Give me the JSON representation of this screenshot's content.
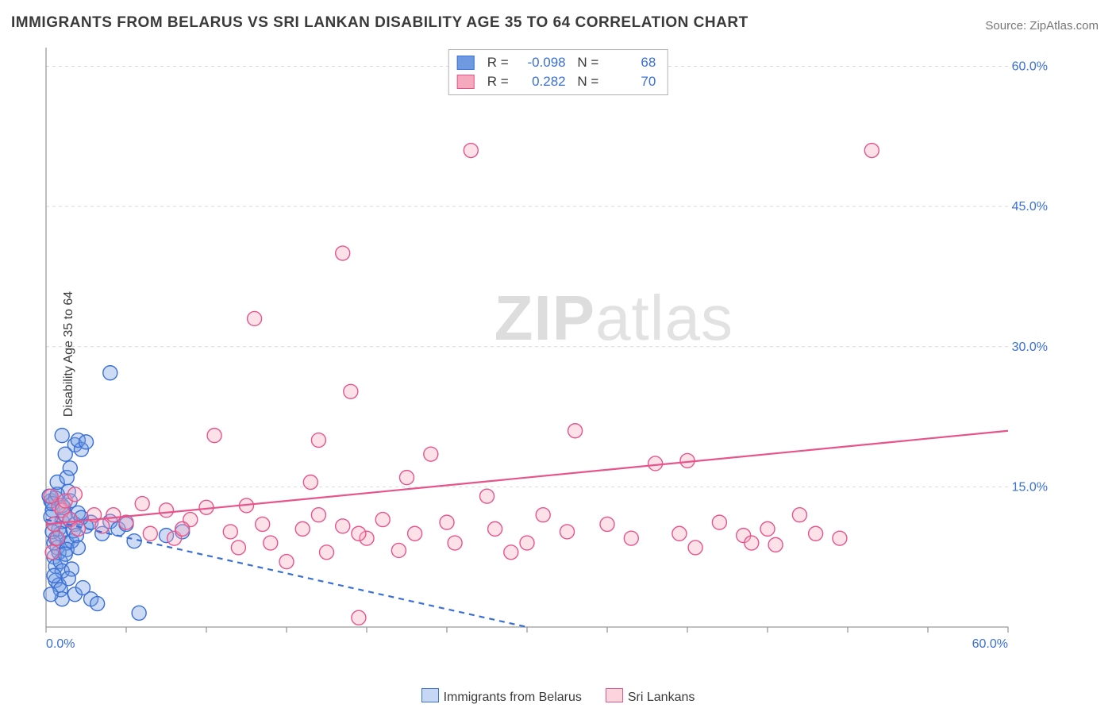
{
  "title": "IMMIGRANTS FROM BELARUS VS SRI LANKAN DISABILITY AGE 35 TO 64 CORRELATION CHART",
  "source_label": "Source: ",
  "source_name": "ZipAtlas.com",
  "ylabel": "Disability Age 35 to 64",
  "watermark_a": "ZIP",
  "watermark_b": "atlas",
  "chart": {
    "type": "scatter-with-regression",
    "xlim": [
      0,
      60
    ],
    "ylim": [
      0,
      62
    ],
    "x_ticks": [
      0,
      5,
      10,
      15,
      20,
      25,
      30,
      35,
      40,
      45,
      50,
      55,
      60
    ],
    "x_tick_labels": {
      "0": "0.0%",
      "60": "60.0%"
    },
    "y_ticks": [
      15,
      30,
      45,
      60
    ],
    "y_tick_labels": {
      "15": "15.0%",
      "30": "30.0%",
      "45": "45.0%",
      "60": "60.0%"
    },
    "grid_color": "#d9d9d9",
    "axis_color": "#9a9a9a",
    "background_color": "#ffffff",
    "marker_radius": 9,
    "marker_fill_opacity": 0.35,
    "marker_stroke_width": 1.4,
    "line_width": 2.2,
    "series": [
      {
        "name": "Immigrants from Belarus",
        "color": "#6f9ae0",
        "stroke": "#3a6fd8",
        "line_color": "#3a6fd8",
        "line_dashed": true,
        "R": "-0.098",
        "N": "68",
        "reg_start": [
          0,
          11.5
        ],
        "reg_end": [
          30,
          0
        ],
        "points": [
          [
            0.3,
            13.5
          ],
          [
            0.5,
            11.0
          ],
          [
            0.6,
            9.5
          ],
          [
            0.4,
            12.5
          ],
          [
            0.8,
            10.5
          ],
          [
            0.2,
            14.0
          ],
          [
            1.0,
            11.3
          ],
          [
            0.7,
            8.5
          ],
          [
            1.2,
            12.0
          ],
          [
            0.9,
            10.0
          ],
          [
            1.5,
            11.5
          ],
          [
            0.6,
            13.8
          ],
          [
            1.3,
            9.0
          ],
          [
            0.4,
            10.2
          ],
          [
            1.8,
            11.0
          ],
          [
            0.5,
            7.5
          ],
          [
            1.0,
            13.0
          ],
          [
            2.5,
            10.8
          ],
          [
            1.6,
            9.2
          ],
          [
            0.3,
            11.8
          ],
          [
            2.0,
            12.2
          ],
          [
            0.8,
            8.0
          ],
          [
            1.4,
            14.5
          ],
          [
            0.6,
            6.5
          ],
          [
            1.1,
            12.8
          ],
          [
            0.9,
            7.0
          ],
          [
            1.7,
            10.3
          ],
          [
            0.5,
            9.0
          ],
          [
            2.2,
            11.7
          ],
          [
            1.3,
            8.3
          ],
          [
            0.4,
            13.2
          ],
          [
            1.9,
            9.8
          ],
          [
            0.7,
            14.2
          ],
          [
            1.0,
            6.0
          ],
          [
            2.8,
            11.2
          ],
          [
            0.6,
            5.0
          ],
          [
            1.5,
            13.5
          ],
          [
            0.8,
            4.5
          ],
          [
            1.2,
            7.8
          ],
          [
            0.5,
            5.5
          ],
          [
            1.6,
            6.2
          ],
          [
            2.0,
            8.5
          ],
          [
            0.9,
            4.0
          ],
          [
            1.4,
            5.2
          ],
          [
            3.5,
            10.0
          ],
          [
            4.0,
            11.3
          ],
          [
            4.5,
            10.5
          ],
          [
            5.5,
            9.2
          ],
          [
            5.0,
            11.0
          ],
          [
            7.5,
            9.8
          ],
          [
            8.5,
            10.2
          ],
          [
            1.0,
            3.0
          ],
          [
            1.8,
            3.5
          ],
          [
            2.3,
            4.2
          ],
          [
            2.8,
            3.0
          ],
          [
            3.2,
            2.5
          ],
          [
            5.8,
            1.5
          ],
          [
            0.7,
            15.5
          ],
          [
            1.3,
            16.0
          ],
          [
            1.5,
            17.0
          ],
          [
            1.8,
            19.5
          ],
          [
            2.2,
            19.0
          ],
          [
            2.0,
            20.0
          ],
          [
            2.5,
            19.8
          ],
          [
            1.0,
            20.5
          ],
          [
            1.2,
            18.5
          ],
          [
            4.0,
            27.2
          ],
          [
            0.3,
            3.5
          ]
        ]
      },
      {
        "name": "Sri Lankans",
        "color": "#f5a9bd",
        "stroke": "#e7548b",
        "line_color": "#e7548b",
        "line_dashed": false,
        "R": "0.282",
        "N": "70",
        "reg_start": [
          0,
          11.0
        ],
        "reg_end": [
          60,
          21.0
        ],
        "points": [
          [
            0.5,
            11.0
          ],
          [
            0.8,
            13.0
          ],
          [
            1.0,
            12.5
          ],
          [
            1.5,
            11.5
          ],
          [
            0.3,
            14.0
          ],
          [
            2.0,
            10.5
          ],
          [
            0.7,
            9.5
          ],
          [
            1.2,
            13.5
          ],
          [
            3.0,
            12.0
          ],
          [
            5.0,
            11.2
          ],
          [
            6.5,
            10.0
          ],
          [
            7.5,
            12.5
          ],
          [
            8.0,
            9.5
          ],
          [
            9.0,
            11.5
          ],
          [
            10.0,
            12.8
          ],
          [
            11.5,
            10.2
          ],
          [
            12.0,
            8.5
          ],
          [
            12.5,
            13.0
          ],
          [
            13.5,
            11.0
          ],
          [
            14.0,
            9.0
          ],
          [
            15.0,
            7.0
          ],
          [
            16.0,
            10.5
          ],
          [
            17.0,
            12.0
          ],
          [
            17.5,
            8.0
          ],
          [
            18.5,
            10.8
          ],
          [
            19.0,
            25.2
          ],
          [
            19.5,
            1.0
          ],
          [
            20.0,
            9.5
          ],
          [
            21.0,
            11.5
          ],
          [
            22.0,
            8.2
          ],
          [
            22.5,
            16.0
          ],
          [
            23.0,
            10.0
          ],
          [
            24.0,
            18.5
          ],
          [
            25.0,
            11.2
          ],
          [
            25.5,
            9.0
          ],
          [
            26.5,
            51.0
          ],
          [
            28.0,
            10.5
          ],
          [
            29.0,
            8.0
          ],
          [
            31.0,
            12.0
          ],
          [
            32.5,
            10.2
          ],
          [
            33.0,
            21.0
          ],
          [
            35.0,
            11.0
          ],
          [
            36.5,
            9.5
          ],
          [
            38.0,
            17.5
          ],
          [
            39.5,
            10.0
          ],
          [
            40.5,
            8.5
          ],
          [
            40.0,
            17.8
          ],
          [
            42.0,
            11.2
          ],
          [
            43.5,
            9.8
          ],
          [
            44.0,
            9.0
          ],
          [
            45.0,
            10.5
          ],
          [
            45.5,
            8.8
          ],
          [
            47.0,
            12.0
          ],
          [
            48.0,
            10.0
          ],
          [
            49.5,
            9.5
          ],
          [
            51.5,
            51.0
          ],
          [
            10.5,
            20.5
          ],
          [
            13.0,
            33.0
          ],
          [
            18.5,
            40.0
          ],
          [
            16.5,
            15.5
          ],
          [
            17.0,
            20.0
          ],
          [
            0.4,
            8.0
          ],
          [
            1.8,
            14.2
          ],
          [
            3.5,
            10.8
          ],
          [
            4.2,
            12.0
          ],
          [
            6.0,
            13.2
          ],
          [
            27.5,
            14.0
          ],
          [
            30.0,
            9.0
          ],
          [
            8.5,
            10.5
          ],
          [
            19.5,
            10.0
          ]
        ]
      }
    ],
    "bottom_legend": [
      {
        "label": "Immigrants from Belarus",
        "fill": "#c5d7f4",
        "stroke": "#3a6fd8"
      },
      {
        "label": "Sri Lankans",
        "fill": "#fbd4de",
        "stroke": "#e7548b"
      }
    ]
  }
}
